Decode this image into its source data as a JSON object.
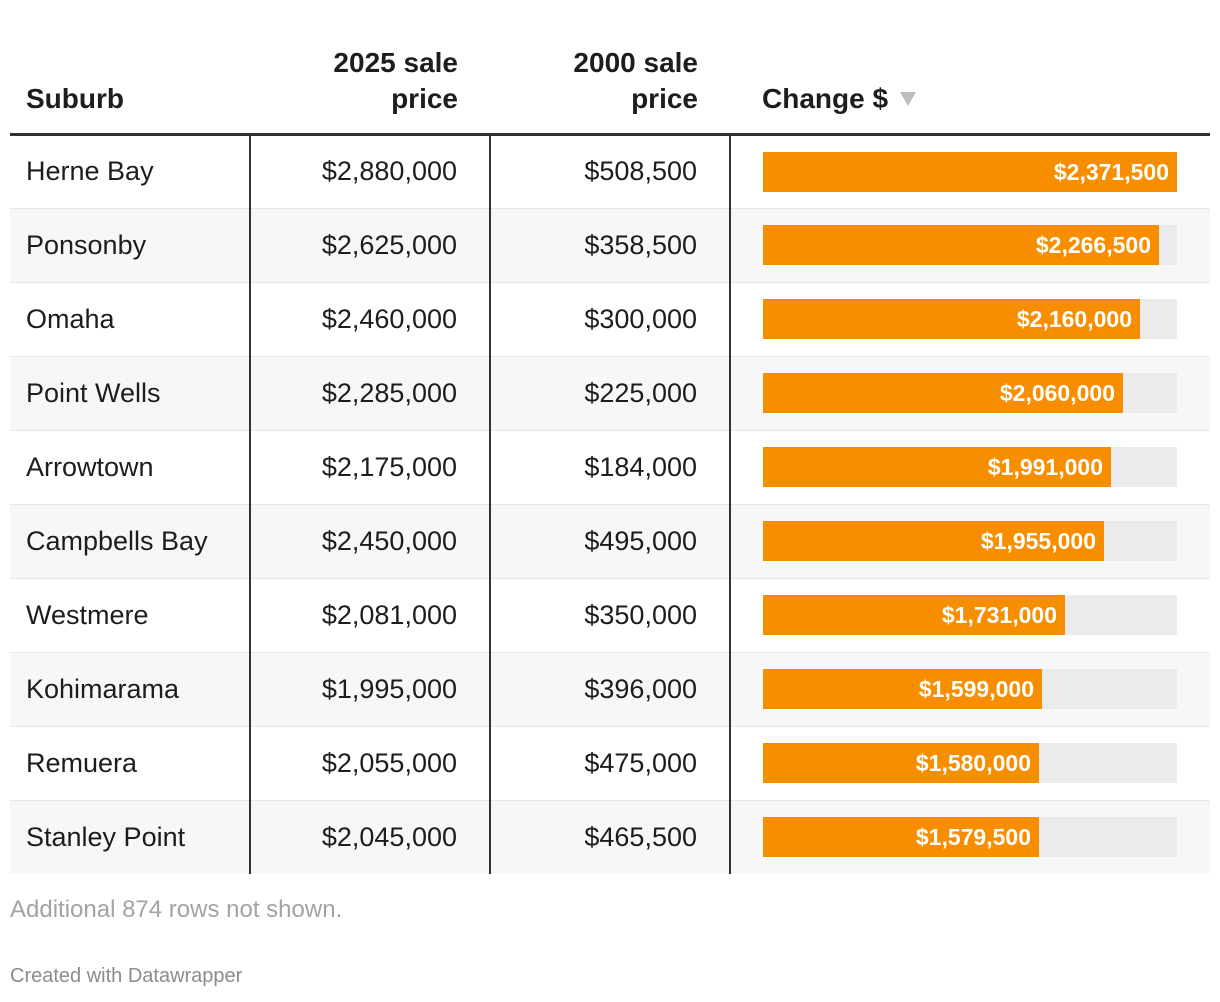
{
  "chart_data": {
    "type": "table",
    "columns": {
      "suburb": "Suburb",
      "price_2025": "2025 sale price",
      "price_2000": "2000 sale price",
      "change": "Change $"
    },
    "sort": {
      "column": "change",
      "order": "descending"
    },
    "bar_max": 2371500,
    "bar_color": "#f78e00",
    "rows": [
      {
        "suburb": "Herne Bay",
        "price_2025": "$2,880,000",
        "price_2000": "$508,500",
        "change": 2371500,
        "change_label": "$2,371,500"
      },
      {
        "suburb": "Ponsonby",
        "price_2025": "$2,625,000",
        "price_2000": "$358,500",
        "change": 2266500,
        "change_label": "$2,266,500"
      },
      {
        "suburb": "Omaha",
        "price_2025": "$2,460,000",
        "price_2000": "$300,000",
        "change": 2160000,
        "change_label": "$2,160,000"
      },
      {
        "suburb": "Point Wells",
        "price_2025": "$2,285,000",
        "price_2000": "$225,000",
        "change": 2060000,
        "change_label": "$2,060,000"
      },
      {
        "suburb": "Arrowtown",
        "price_2025": "$2,175,000",
        "price_2000": "$184,000",
        "change": 1991000,
        "change_label": "$1,991,000"
      },
      {
        "suburb": "Campbells Bay",
        "price_2025": "$2,450,000",
        "price_2000": "$495,000",
        "change": 1955000,
        "change_label": "$1,955,000"
      },
      {
        "suburb": "Westmere",
        "price_2025": "$2,081,000",
        "price_2000": "$350,000",
        "change": 1731000,
        "change_label": "$1,731,000"
      },
      {
        "suburb": "Kohimarama",
        "price_2025": "$1,995,000",
        "price_2000": "$396,000",
        "change": 1599000,
        "change_label": "$1,599,000"
      },
      {
        "suburb": "Remuera",
        "price_2025": "$2,055,000",
        "price_2000": "$475,000",
        "change": 1580000,
        "change_label": "$1,580,000"
      },
      {
        "suburb": "Stanley Point",
        "price_2025": "$2,045,000",
        "price_2000": "$465,500",
        "change": 1579500,
        "change_label": "$1,579,500"
      }
    ]
  },
  "footer": {
    "note": "Additional 874 rows not shown.",
    "credit": "Created with Datawrapper"
  }
}
